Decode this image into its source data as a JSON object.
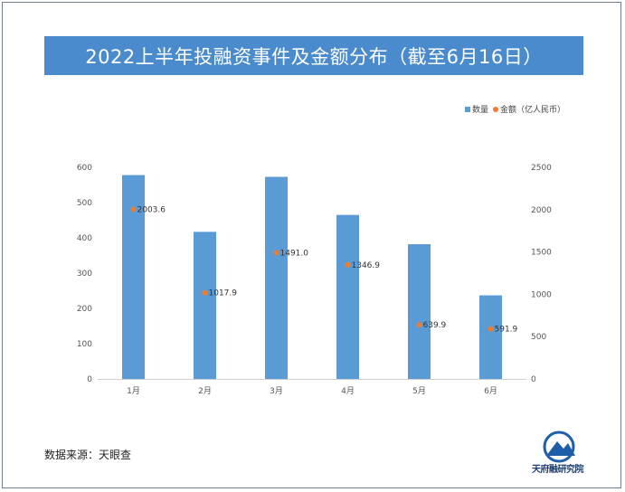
{
  "title": "2022上半年投融资事件及金额分布（截至6月16日）",
  "legend": {
    "bar_label": "数量",
    "dot_label": "金额（亿人民币）"
  },
  "source": "数据来源：天眼查",
  "logo_text": "天府融研究院",
  "colors": {
    "title_bg": "#4a8bcd",
    "bar": "#5b9bd5",
    "dot": "#ed7d31"
  },
  "chart_data": {
    "type": "bar",
    "categories": [
      "1月",
      "2月",
      "3月",
      "4月",
      "5月",
      "6月"
    ],
    "series": [
      {
        "name": "数量",
        "type": "bar",
        "axis": "left",
        "values": [
          578,
          417,
          573,
          465,
          382,
          237
        ]
      },
      {
        "name": "金额（亿人民币）",
        "type": "scatter",
        "axis": "right",
        "values": [
          2003.6,
          1017.9,
          1491.0,
          1346.9,
          639.9,
          591.9
        ],
        "labels": [
          "2003.6",
          "1017.9",
          "1491.0",
          "1346.9",
          "639.9",
          "591.9"
        ]
      }
    ],
    "y_left": {
      "min": 0,
      "max": 600,
      "ticks": [
        "0",
        "100",
        "200",
        "300",
        "400",
        "500",
        "600"
      ]
    },
    "y_right": {
      "min": 0,
      "max": 2500,
      "ticks": [
        "0",
        "500",
        "1000",
        "1500",
        "2000",
        "2500"
      ]
    },
    "grid": false,
    "legend_position": "top-right"
  }
}
